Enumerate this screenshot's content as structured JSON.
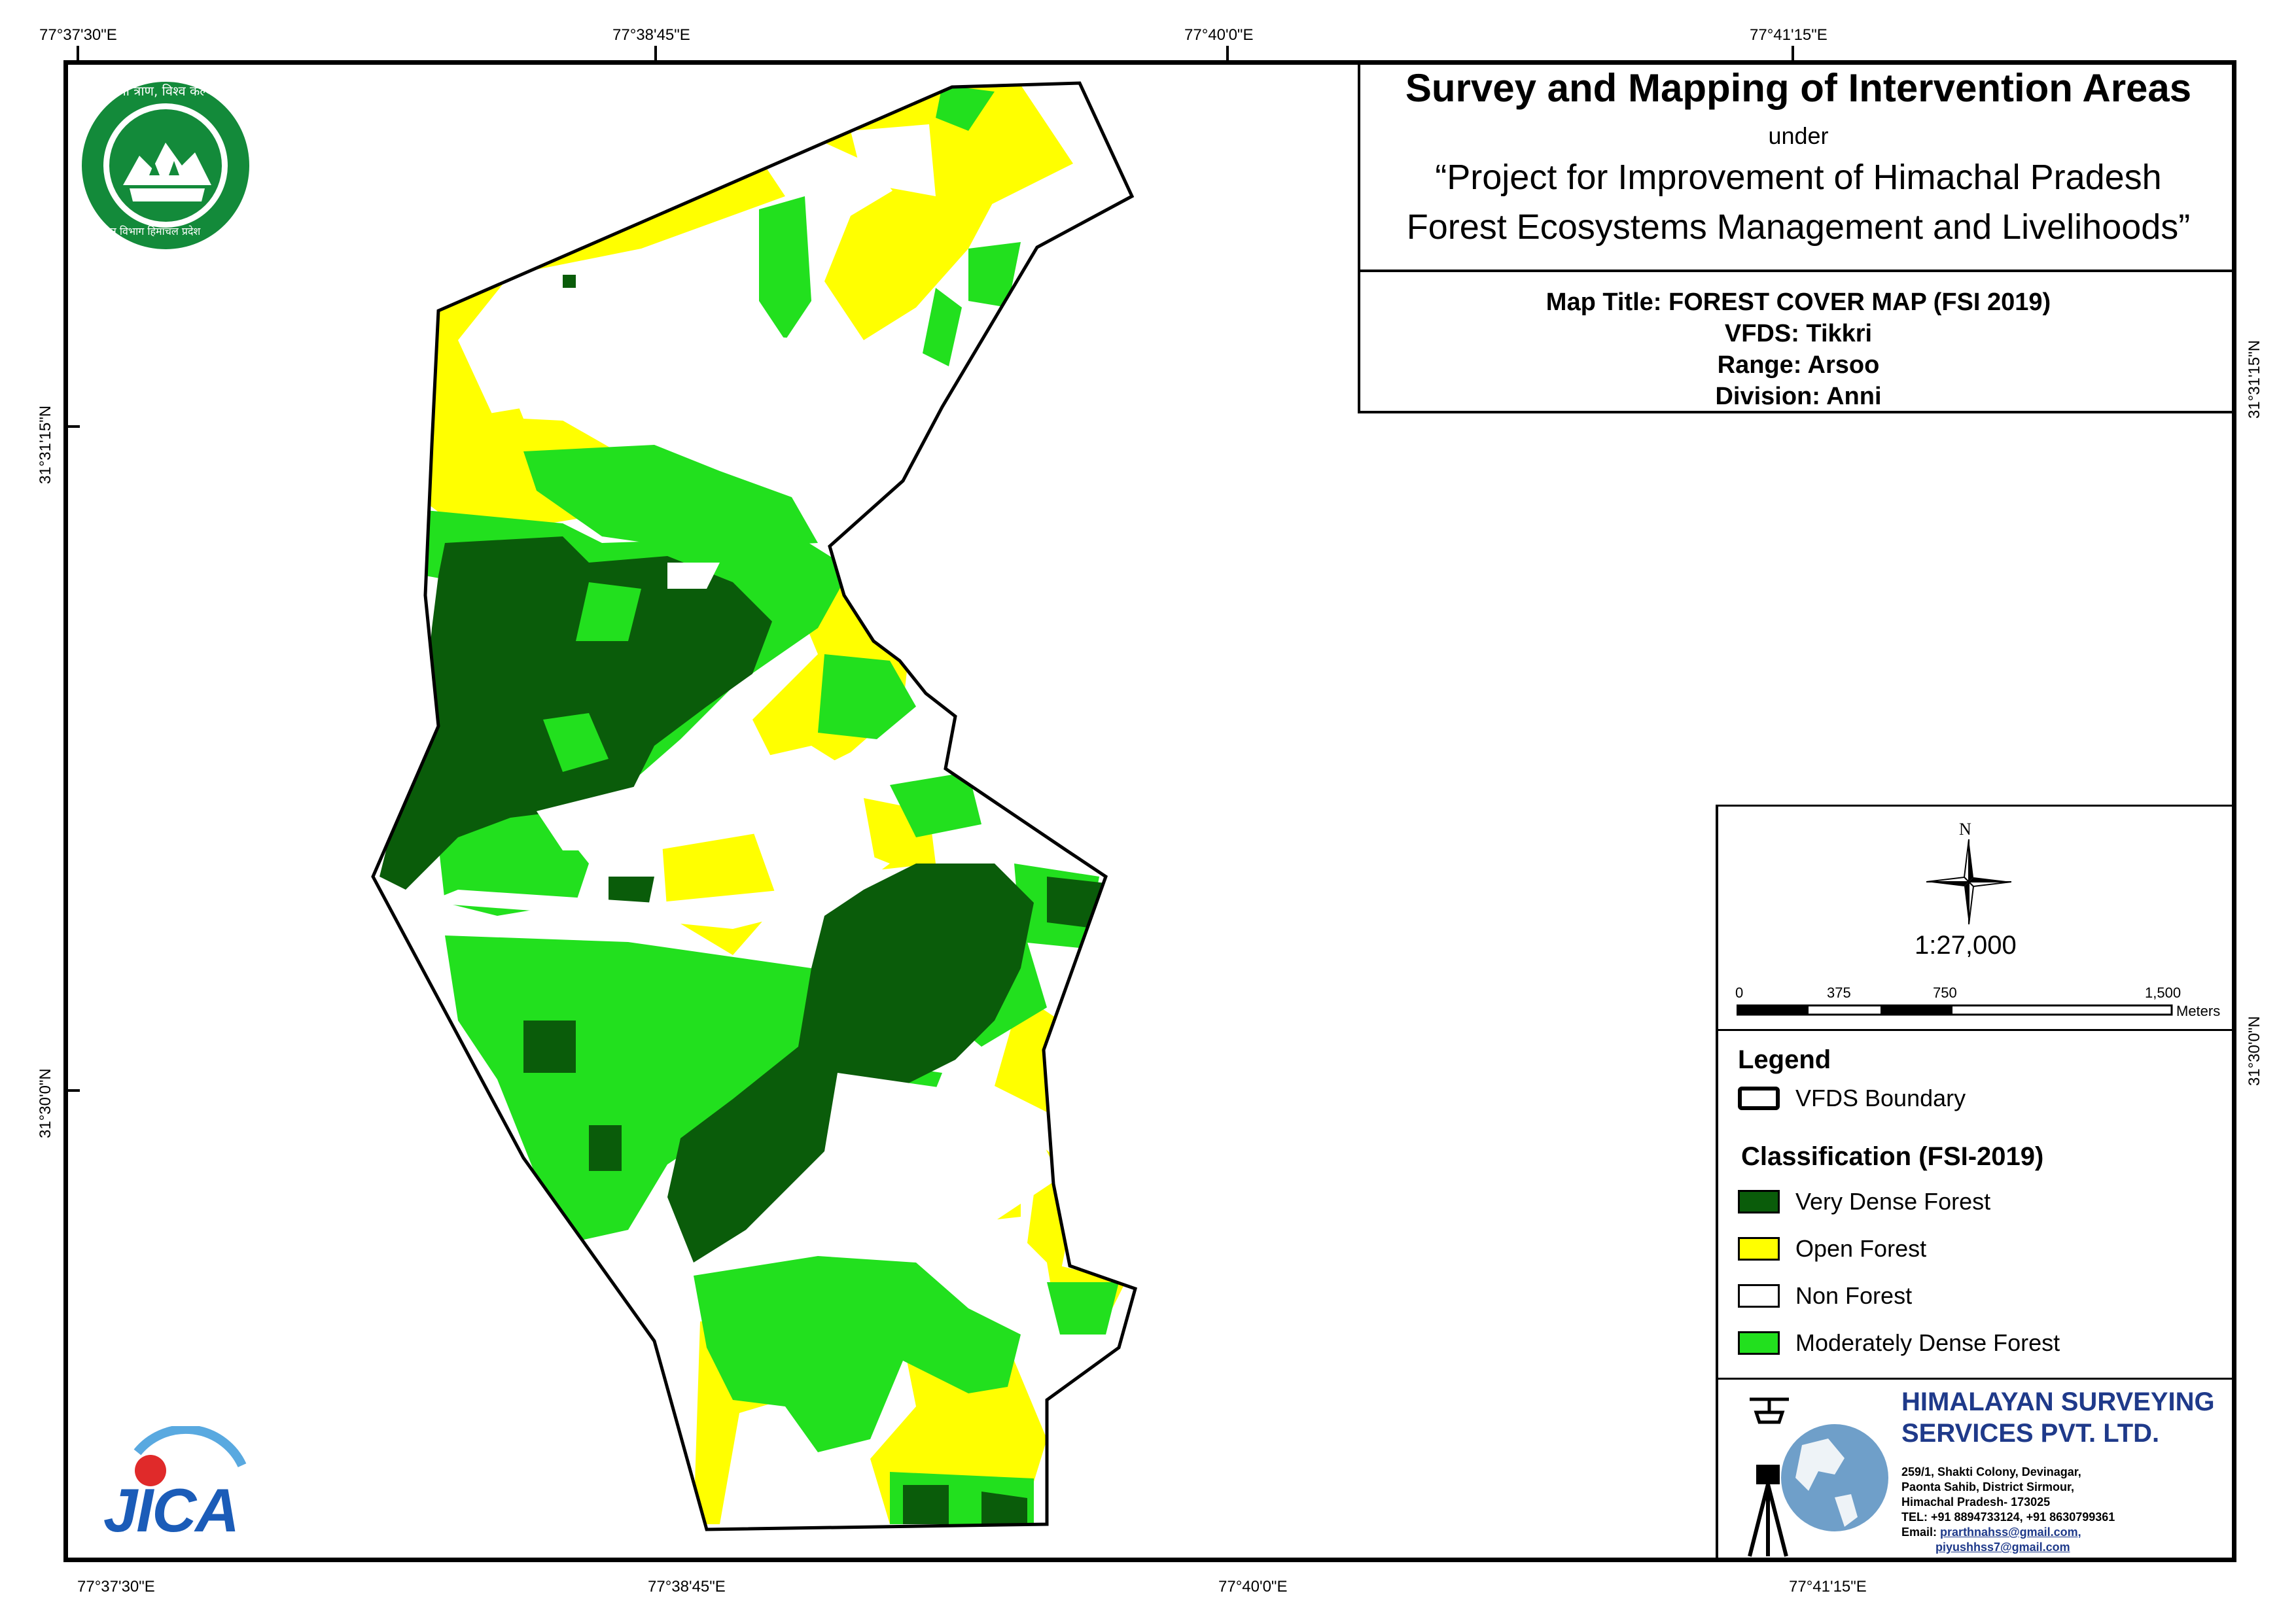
{
  "title": {
    "main": "Survey and Mapping of Intervention Areas",
    "under": "under",
    "project_line1": "“Project for Improvement of Himachal Pradesh",
    "project_line2": "Forest Ecosystems Management and Livelihoods”"
  },
  "info": {
    "map_title": "Map Title: FOREST COVER MAP (FSI 2019)",
    "vfds": "VFDS: Tikkri",
    "range": "Range: Arsoo",
    "division": "Division: Anni"
  },
  "coordinates": {
    "top": [
      "77°37'30\"E",
      "77°38'45\"E",
      "77°40'0\"E",
      "77°41'15\"E"
    ],
    "bottom": [
      "77°37'30\"E",
      "77°38'45\"E",
      "77°40'0\"E",
      "77°41'15\"E"
    ],
    "left": [
      "31°31'15\"N",
      "31°30'0\"N"
    ],
    "right": [
      "31°31'15\"N",
      "31°30'0\"N"
    ]
  },
  "north_arrow": {
    "label": "N",
    "icon": "north-arrow-icon"
  },
  "scale": {
    "ratio": "1:27,000",
    "ticks": [
      "0",
      "375",
      "750",
      "1,500"
    ],
    "unit": "Meters"
  },
  "legend": {
    "title": "Legend",
    "boundary_label": "VFDS Boundary",
    "classification_title": "Classification (FSI-2019)",
    "classes": [
      {
        "label": "Very Dense Forest",
        "color": "#0a5c0a"
      },
      {
        "label": "Open Forest",
        "color": "#ffff00"
      },
      {
        "label": "Non Forest",
        "color": "#ffffff"
      },
      {
        "label": "Moderately Dense Forest",
        "color": "#22e01e"
      }
    ]
  },
  "company": {
    "name_line1": "HIMALAYAN SURVEYING",
    "name_line2": "SERVICES PVT. LTD.",
    "address": [
      "259/1, Shakti Colony, Devinagar,",
      "Paonta Sahib, District Sirmour,",
      "Himachal Pradesh- 173025",
      "TEL: +91 8894733124, +91 8630799361"
    ],
    "email_label": "Email:",
    "email1": "prarthnahss@gmail.com,",
    "email2": "piyushhss7@gmail.com"
  },
  "logos": {
    "forest_dept_text_top": "वन श्री त्राण, विश्व कल्याण",
    "forest_dept_text_bottom": "वन विभाग हिमाचल प्रदेश",
    "jica": "JICA"
  },
  "colors": {
    "very_dense": "#0a5c0a",
    "moderately_dense": "#22e01e",
    "open": "#ffff00",
    "non_forest": "#ffffff",
    "company_blue": "#1f3a8a",
    "logo_green": "#138a3a"
  }
}
